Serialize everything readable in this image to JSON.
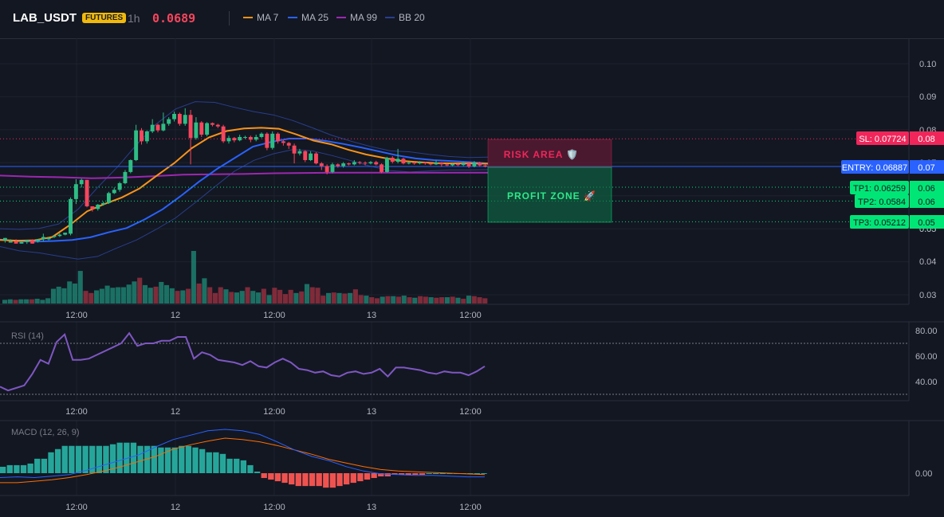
{
  "header": {
    "symbol": "LAB_USDT",
    "badge": "FUTURES",
    "timeframe": "1h",
    "last_price": "0.0689",
    "indicators": [
      {
        "label": "MA 7",
        "color": "#f7931a"
      },
      {
        "label": "MA 25",
        "color": "#2962ff"
      },
      {
        "label": "MA 99",
        "color": "#9c27b0"
      },
      {
        "label": "BB 20",
        "color": "#283e8c"
      }
    ]
  },
  "price_axis": {
    "ticks": [
      "0.10",
      "0.09",
      "0.08",
      "0.07",
      "0.06",
      "0.06",
      "0.05",
      "0.05",
      "0.04",
      "0.03"
    ]
  },
  "time_axis": {
    "labels": [
      "12:00",
      "12",
      "12:00",
      "13",
      "12:00"
    ]
  },
  "levels": {
    "sl": {
      "label": "SL: 0.07724",
      "axis": "0.08",
      "value": 0.07724,
      "color": "#f0265a"
    },
    "entry": {
      "label": "ENTRY: 0.06887",
      "axis": "0.07",
      "value": 0.06887,
      "color": "#2962ff"
    },
    "tp1": {
      "label": "TP1: 0.06259",
      "axis": "0.06",
      "value": 0.06259,
      "color": "#00e676"
    },
    "tp2": {
      "label": "TP2: 0.0584",
      "axis": "0.06",
      "value": 0.0584,
      "color": "#00e676"
    },
    "tp3": {
      "label": "TP3: 0.05212",
      "axis": "0.05",
      "value": 0.05212,
      "color": "#00e676"
    }
  },
  "zones": {
    "risk_label": "RISK AREA 🛡️",
    "profit_label": "PROFIT ZONE 🚀"
  },
  "rsi": {
    "title": "RSI (14)",
    "ticks": [
      "80.00",
      "60.00",
      "40.00"
    ],
    "overbought": 70,
    "oversold": 30
  },
  "macd": {
    "title": "MACD (12, 26, 9)",
    "ticks": [
      "0.00"
    ]
  },
  "chart_data": [
    {
      "type": "candlestick",
      "title": "LAB_USDT",
      "ylim": [
        0.027,
        0.105
      ],
      "y_ticks": [
        0.1,
        0.09,
        0.08,
        0.07,
        0.06,
        0.05,
        0.04,
        0.03
      ],
      "x_tick_labels": [
        "12:00",
        "12",
        "12:00",
        "13",
        "12:00"
      ],
      "candles": [
        [
          0.0465,
          0.0472,
          0.046,
          0.0458
        ],
        [
          0.0458,
          0.0462,
          0.0465,
          0.0468
        ],
        [
          0.0462,
          0.0455,
          0.0468,
          0.0462
        ],
        [
          0.0455,
          0.046,
          0.0463,
          0.0458
        ],
        [
          0.046,
          0.0465,
          0.0457,
          0.0454
        ],
        [
          0.0465,
          0.0455,
          0.0468,
          0.0462
        ],
        [
          0.0462,
          0.0468,
          0.0458,
          0.0468
        ],
        [
          0.0468,
          0.0475,
          0.0462,
          0.0485
        ],
        [
          0.0468,
          0.0472,
          0.0465,
          0.0475
        ],
        [
          0.0475,
          0.0479,
          0.0472,
          0.0478
        ],
        [
          0.0478,
          0.0482,
          0.0475,
          0.0486
        ],
        [
          0.0482,
          0.0488,
          0.048,
          0.0485
        ],
        [
          0.0485,
          0.059,
          0.048,
          0.0595
        ],
        [
          0.059,
          0.0635,
          0.0575,
          0.065
        ],
        [
          0.0635,
          0.0648,
          0.0625,
          0.0652
        ],
        [
          0.0648,
          0.0568,
          0.0642,
          0.0565
        ],
        [
          0.0568,
          0.056,
          0.0565,
          0.0552
        ],
        [
          0.056,
          0.0573,
          0.0555,
          0.0575
        ],
        [
          0.0573,
          0.0578,
          0.057,
          0.0582
        ],
        [
          0.0578,
          0.0608,
          0.0575,
          0.0612
        ],
        [
          0.0608,
          0.0618,
          0.0605,
          0.0625
        ],
        [
          0.0618,
          0.0638,
          0.0612,
          0.0642
        ],
        [
          0.0638,
          0.0672,
          0.0635,
          0.0678
        ],
        [
          0.0672,
          0.0708,
          0.0668,
          0.071
        ],
        [
          0.0708,
          0.0798,
          0.0705,
          0.0815
        ],
        [
          0.0798,
          0.0765,
          0.0805,
          0.0755
        ],
        [
          0.0765,
          0.0795,
          0.0758,
          0.0798
        ],
        [
          0.0795,
          0.0815,
          0.079,
          0.0832
        ],
        [
          0.0815,
          0.0798,
          0.0818,
          0.0792
        ],
        [
          0.0798,
          0.0818,
          0.0795,
          0.0852
        ],
        [
          0.0818,
          0.0832,
          0.0812,
          0.0838
        ],
        [
          0.0832,
          0.0848,
          0.0825,
          0.0855
        ],
        [
          0.0848,
          0.0818,
          0.0852,
          0.0812
        ],
        [
          0.0818,
          0.0845,
          0.0812,
          0.0865
        ],
        [
          0.0845,
          0.0775,
          0.086,
          0.0695
        ],
        [
          0.0775,
          0.0822,
          0.077,
          0.0838
        ],
        [
          0.0822,
          0.0785,
          0.0826,
          0.0778
        ],
        [
          0.0785,
          0.082,
          0.078,
          0.0823
        ],
        [
          0.082,
          0.0815,
          0.0822,
          0.081
        ],
        [
          0.0815,
          0.081,
          0.0818,
          0.0805
        ],
        [
          0.081,
          0.0765,
          0.0815,
          0.076
        ],
        [
          0.0765,
          0.0775,
          0.0758,
          0.0782
        ],
        [
          0.0775,
          0.0768,
          0.0778,
          0.0762
        ],
        [
          0.0768,
          0.0778,
          0.0765,
          0.0785
        ],
        [
          0.0778,
          0.0778,
          0.0782,
          0.0772
        ],
        [
          0.0778,
          0.077,
          0.0782,
          0.0762
        ],
        [
          0.077,
          0.0778,
          0.0765,
          0.0785
        ],
        [
          0.0778,
          0.0788,
          0.0775,
          0.0792
        ],
        [
          0.0788,
          0.0745,
          0.0792,
          0.0738
        ],
        [
          0.0745,
          0.0788,
          0.074,
          0.0795
        ],
        [
          0.0788,
          0.0765,
          0.0792,
          0.0758
        ],
        [
          0.0765,
          0.076,
          0.0768,
          0.0752
        ],
        [
          0.076,
          0.0752,
          0.0763,
          0.0742
        ],
        [
          0.0752,
          0.0728,
          0.0758,
          0.0698
        ],
        [
          0.0728,
          0.0735,
          0.0722,
          0.0742
        ],
        [
          0.0735,
          0.0708,
          0.0738,
          0.0702
        ],
        [
          0.0708,
          0.0728,
          0.0705,
          0.0735
        ],
        [
          0.0728,
          0.0698,
          0.0732,
          0.0695
        ],
        [
          0.0698,
          0.069,
          0.0702,
          0.0678
        ],
        [
          0.069,
          0.0672,
          0.0695,
          0.0665
        ],
        [
          0.0672,
          0.0695,
          0.0668,
          0.07
        ],
        [
          0.0695,
          0.069,
          0.0698,
          0.0685
        ],
        [
          0.069,
          0.0698,
          0.0685,
          0.0702
        ],
        [
          0.0698,
          0.0695,
          0.07,
          0.0692
        ],
        [
          0.0695,
          0.0702,
          0.0692,
          0.0708
        ],
        [
          0.0702,
          0.07,
          0.0705,
          0.0695
        ],
        [
          0.07,
          0.0698,
          0.0704,
          0.0692
        ],
        [
          0.0698,
          0.0702,
          0.0695,
          0.0705
        ],
        [
          0.0702,
          0.0695,
          0.0706,
          0.0692
        ],
        [
          0.0695,
          0.0672,
          0.0698,
          0.0668
        ],
        [
          0.0672,
          0.0715,
          0.067,
          0.0718
        ],
        [
          0.0715,
          0.0703,
          0.072,
          0.0698
        ],
        [
          0.0703,
          0.0712,
          0.0698,
          0.0742
        ],
        [
          0.0712,
          0.0698,
          0.0715,
          0.0695
        ],
        [
          0.0698,
          0.07,
          0.0695,
          0.0703
        ],
        [
          0.07,
          0.0698,
          0.0703,
          0.0694
        ],
        [
          0.0698,
          0.0701,
          0.0695,
          0.0705
        ],
        [
          0.0701,
          0.0698,
          0.0703,
          0.0694
        ],
        [
          0.0698,
          0.0695,
          0.07,
          0.0692
        ],
        [
          0.0695,
          0.07,
          0.0693,
          0.0707
        ],
        [
          0.07,
          0.0695,
          0.0702,
          0.0688
        ],
        [
          0.0695,
          0.0692,
          0.0698,
          0.069
        ],
        [
          0.0692,
          0.0696,
          0.069,
          0.0698
        ],
        [
          0.0696,
          0.0693,
          0.0698,
          0.069
        ],
        [
          0.0693,
          0.0698,
          0.069,
          0.0702
        ],
        [
          0.0698,
          0.0689,
          0.0702,
          0.0684
        ],
        [
          0.0689,
          0.07,
          0.0686,
          0.0705
        ],
        [
          0.07,
          0.0692,
          0.0703,
          0.0688
        ],
        [
          0.0692,
          0.0689,
          0.0696,
          0.0686
        ]
      ],
      "bollinger": {
        "upper": [
          0.05,
          0.0498,
          0.0501,
          0.0514,
          0.0559,
          0.0625,
          0.0686,
          0.0755,
          0.0817,
          0.0863,
          0.0885,
          0.0883,
          0.0868,
          0.0855,
          0.0845,
          0.0828,
          0.0806,
          0.0783,
          0.0765,
          0.0749,
          0.0736,
          0.0733,
          0.0725,
          0.0719,
          0.0716,
          0.0717
        ],
        "lower": [
          0.0446,
          0.0433,
          0.0427,
          0.0417,
          0.0408,
          0.0416,
          0.0442,
          0.0466,
          0.0498,
          0.0533,
          0.0579,
          0.0627,
          0.0674,
          0.0707,
          0.0727,
          0.074,
          0.0736,
          0.0722,
          0.0706,
          0.0689,
          0.0676,
          0.0672,
          0.0675,
          0.0678,
          0.0678,
          0.0679
        ]
      },
      "moving_averages": {
        "ma7": [
          0.0466,
          0.0464,
          0.0465,
          0.0475,
          0.0511,
          0.0553,
          0.0575,
          0.0595,
          0.0622,
          0.0661,
          0.0699,
          0.0744,
          0.0777,
          0.0796,
          0.0804,
          0.0806,
          0.0803,
          0.0786,
          0.0767,
          0.0756,
          0.0739,
          0.0725,
          0.0715,
          0.0706,
          0.0702,
          0.0699,
          0.0698,
          0.0698,
          0.0697
        ],
        "ma25": [
          0.0467,
          0.0462,
          0.0461,
          0.0463,
          0.0466,
          0.0474,
          0.0489,
          0.0502,
          0.0528,
          0.0559,
          0.0599,
          0.0642,
          0.0681,
          0.0715,
          0.0749,
          0.0763,
          0.0773,
          0.0773,
          0.0766,
          0.0757,
          0.0746,
          0.0734,
          0.0722,
          0.0713,
          0.0708,
          0.0705,
          0.0702,
          0.0698
        ],
        "ma99": [
          0.0661,
          0.0658,
          0.0656,
          0.0653,
          0.0655,
          0.0659,
          0.0664,
          0.0665,
          0.0666,
          0.0668,
          0.0669,
          0.067,
          0.067,
          0.067,
          0.067,
          0.067,
          0.067
        ]
      },
      "volume": [
        0.07,
        0.08,
        0.07,
        0.08,
        0.08,
        0.08,
        0.09,
        0.07,
        0.1,
        0.28,
        0.32,
        0.29,
        0.42,
        0.38,
        0.62,
        0.24,
        0.2,
        0.25,
        0.28,
        0.34,
        0.3,
        0.31,
        0.31,
        0.36,
        0.42,
        0.49,
        0.35,
        0.3,
        0.32,
        0.41,
        0.35,
        0.29,
        0.24,
        0.25,
        0.28,
        1.0,
        0.38,
        0.48,
        0.31,
        0.2,
        0.31,
        0.27,
        0.22,
        0.21,
        0.24,
        0.31,
        0.24,
        0.21,
        0.28,
        0.16,
        0.3,
        0.26,
        0.18,
        0.26,
        0.2,
        0.23,
        0.37,
        0.31,
        0.3,
        0.15,
        0.2,
        0.21,
        0.2,
        0.19,
        0.2,
        0.27,
        0.16,
        0.15,
        0.12,
        0.1,
        0.13,
        0.14,
        0.14,
        0.13,
        0.15,
        0.12,
        0.11,
        0.14,
        0.13,
        0.12,
        0.11,
        0.12,
        0.12,
        0.13,
        0.11,
        0.09,
        0.15,
        0.14,
        0.12,
        0.1
      ]
    },
    {
      "type": "line",
      "title": "RSI (14)",
      "ylim": [
        25,
        85
      ],
      "y_ticks": [
        80,
        60,
        40
      ],
      "values": [
        36,
        33,
        35,
        37,
        46,
        57,
        54,
        71,
        77,
        57,
        57,
        58,
        61,
        64,
        67,
        70,
        78,
        68,
        70,
        70,
        72,
        72,
        75,
        75,
        58,
        63,
        61,
        57,
        56,
        55,
        53,
        56,
        52,
        51,
        55,
        58,
        55,
        50,
        49,
        47,
        48,
        45,
        44,
        47,
        48,
        46,
        47,
        50,
        44,
        51,
        51,
        50,
        49,
        47,
        46,
        48,
        47,
        47,
        45,
        48,
        52
      ]
    },
    {
      "type": "line",
      "title": "MACD (12, 26, 9)",
      "y_ticks": [
        0
      ],
      "macd_line": [
        -0.0006,
        -0.0005,
        -0.0006,
        -0.0004,
        -0.0002,
        0.0004,
        0.0011,
        0.0018,
        0.0025,
        0.0036,
        0.0046,
        0.0052,
        0.0058,
        0.006,
        0.0058,
        0.0053,
        0.0043,
        0.0032,
        0.0023,
        0.0017,
        0.0009,
        0.0003,
        -0.0001,
        -0.0002,
        -0.0003,
        -0.0003,
        -0.0004,
        -0.0005,
        -0.0005
      ],
      "signal_line": [
        -0.0013,
        -0.0013,
        -0.0011,
        -0.0009,
        -0.0006,
        -0.0002,
        0.0003,
        0.0009,
        0.0016,
        0.0023,
        0.0033,
        0.0039,
        0.0044,
        0.0048,
        0.0046,
        0.0043,
        0.0038,
        0.0032,
        0.0026,
        0.0019,
        0.0014,
        0.0009,
        0.0005,
        0.0003,
        0.0002,
        0.0001,
        0,
        -0.0001,
        -0.0002
      ],
      "histogram": [
        0.0004,
        0.0005,
        0.0005,
        0.0005,
        0.0006,
        0.0009,
        0.0009,
        0.0013,
        0.0015,
        0.0017,
        0.0017,
        0.0017,
        0.0017,
        0.0017,
        0.0017,
        0.0017,
        0.0018,
        0.0019,
        0.0019,
        0.0019,
        0.0017,
        0.0017,
        0.0017,
        0.0016,
        0.0016,
        0.0016,
        0.0017,
        0.0017,
        0.0016,
        0.0015,
        0.0013,
        0.0013,
        0.0012,
        0.0009,
        0.0009,
        0.0008,
        0.0005,
        0.0001,
        -0.0003,
        -0.0004,
        -0.0005,
        -0.0006,
        -0.0007,
        -0.0008,
        -0.0008,
        -0.0008,
        -0.0008,
        -0.0009,
        -0.0009,
        -0.0008,
        -0.0007,
        -0.0006,
        -0.0005,
        -0.0004,
        -0.0003,
        -0.0002,
        -0.0002,
        -0.0001,
        -0.0001,
        -0.0001,
        -0.0001,
        -0.0001,
        0,
        0,
        0,
        0,
        0,
        0,
        0,
        0,
        0
      ]
    }
  ]
}
